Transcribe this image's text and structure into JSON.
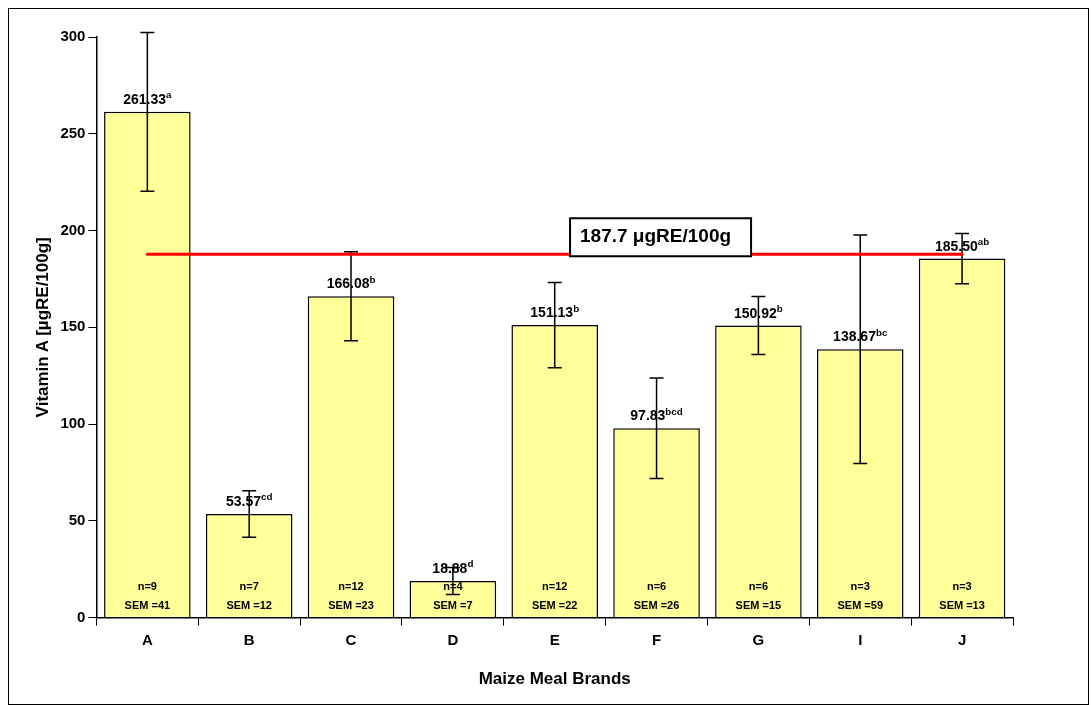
{
  "chart_data": {
    "type": "bar",
    "xlabel": "Maize Meal Brands",
    "ylabel": "Vitamin A [µgRE/100g]",
    "categories": [
      "A",
      "B",
      "C",
      "D",
      "E",
      "F",
      "G",
      "I",
      "J"
    ],
    "series": [
      {
        "color": "#ffff99",
        "values": [
          261.33,
          53.57,
          166.08,
          18.88,
          151.13,
          97.83,
          150.92,
          138.67,
          185.5
        ],
        "errors": [
          41,
          12,
          23,
          7,
          22,
          26,
          15,
          59,
          13
        ],
        "value_labels": [
          "261.33$^{a}$",
          "53.57$^{cd}$",
          "166.08$^{b}$",
          "18.88$^{d}$",
          "151.13$^{b}$",
          "97.83$^{bcd}$",
          "150.92$^{b}$",
          "138.67$^{bc}$",
          "185.50$^{ab}$"
        ]
      }
    ],
    "ylim": [
      0,
      300
    ],
    "yticks": [
      0,
      50,
      100,
      150,
      200,
      250,
      300
    ],
    "grid": false,
    "legend": false,
    "ref_lines": [
      {
        "axis": "y",
        "value": 187.7,
        "label": "187.7 μgRE/100g",
        "color": "#ff0000"
      }
    ],
    "annotations": [
      "n=9",
      "SEM =41",
      "n=7",
      "SEM =12",
      "n=12",
      "SEM =23",
      "n=4",
      "SEM =7",
      "n=12",
      "SEM =22",
      "n=6",
      "SEM =26",
      "n=6",
      "SEM =15",
      "n=3",
      "SEM =59",
      "n=3",
      "SEM =13"
    ]
  }
}
